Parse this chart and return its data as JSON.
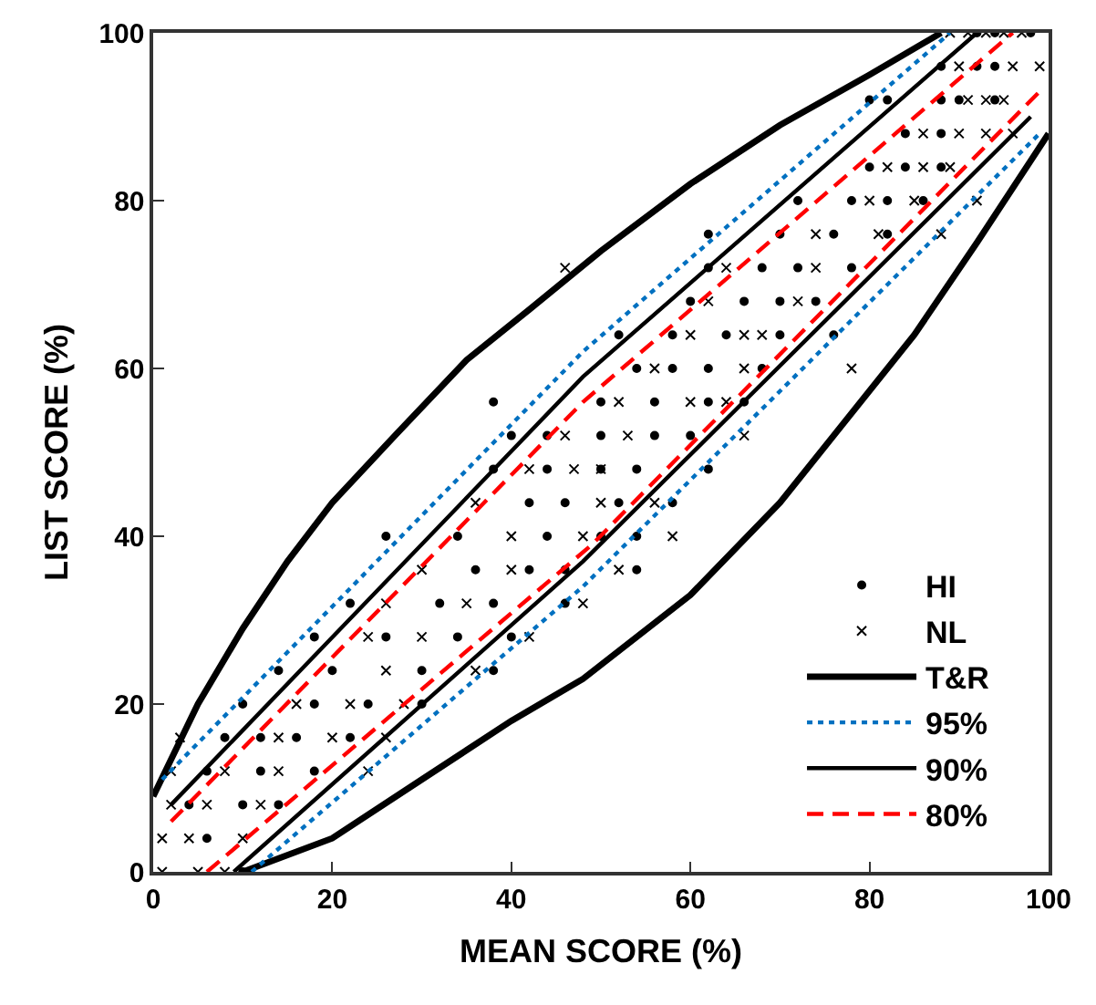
{
  "chart_data": {
    "type": "scatter",
    "xlabel": "MEAN SCORE (%)",
    "ylabel": "LIST SCORE (%)",
    "xlim": [
      0,
      100
    ],
    "ylim": [
      0,
      100
    ],
    "xticks": [
      0,
      20,
      40,
      60,
      80,
      100
    ],
    "yticks": [
      0,
      20,
      40,
      60,
      80,
      100
    ],
    "grid": false,
    "legend": "bottom right",
    "series": [
      {
        "name": "HI",
        "marker": "circle",
        "color": "#000000",
        "x": [
          92,
          94,
          98,
          88,
          92,
          94,
          80,
          82,
          88,
          90,
          94,
          84,
          88,
          80,
          84,
          88,
          72,
          78,
          82,
          86,
          62,
          70,
          76,
          82,
          62,
          68,
          72,
          78,
          60,
          66,
          70,
          74,
          52,
          58,
          64,
          70,
          76,
          54,
          58,
          62,
          68,
          38,
          50,
          56,
          62,
          66,
          40,
          44,
          50,
          56,
          60,
          38,
          44,
          50,
          54,
          62,
          42,
          46,
          52,
          58,
          26,
          34,
          44,
          50,
          54,
          36,
          42,
          46,
          54,
          22,
          32,
          38,
          46,
          18,
          26,
          34,
          40,
          14,
          20,
          30,
          38,
          10,
          18,
          24,
          30,
          8,
          12,
          16,
          22,
          6,
          12,
          18,
          4,
          10,
          14,
          6,
          10
        ],
        "values": [
          100,
          100,
          100,
          96,
          96,
          96,
          92,
          92,
          92,
          92,
          92,
          88,
          88,
          84,
          84,
          84,
          80,
          80,
          80,
          80,
          76,
          76,
          76,
          76,
          72,
          72,
          72,
          72,
          68,
          68,
          68,
          68,
          64,
          64,
          64,
          64,
          64,
          60,
          60,
          60,
          60,
          56,
          56,
          56,
          56,
          56,
          52,
          52,
          52,
          52,
          52,
          48,
          48,
          48,
          48,
          48,
          44,
          44,
          44,
          44,
          40,
          40,
          40,
          40,
          40,
          36,
          36,
          36,
          36,
          32,
          32,
          32,
          32,
          28,
          28,
          28,
          28,
          24,
          24,
          24,
          24,
          20,
          20,
          20,
          20,
          16,
          16,
          16,
          16,
          12,
          12,
          12,
          8,
          8,
          8,
          4,
          0
        ]
      },
      {
        "name": "NL",
        "marker": "cross",
        "color": "#000000",
        "x": [
          89,
          91,
          93,
          95,
          97,
          90,
          96,
          99,
          91,
          93,
          95,
          86,
          90,
          93,
          96,
          82,
          86,
          89,
          80,
          85,
          92,
          74,
          81,
          88,
          46,
          64,
          74,
          62,
          72,
          60,
          66,
          68,
          56,
          66,
          78,
          52,
          60,
          64,
          46,
          53,
          66,
          42,
          50,
          47,
          36,
          50,
          56,
          40,
          48,
          58,
          30,
          40,
          52,
          26,
          35,
          48,
          24,
          30,
          42,
          26,
          36,
          16,
          22,
          28,
          3,
          14,
          20,
          26,
          2,
          8,
          14,
          24,
          2,
          6,
          12,
          1,
          4,
          10,
          1,
          5,
          8
        ],
        "values": [
          100,
          100,
          100,
          100,
          100,
          96,
          96,
          96,
          92,
          92,
          92,
          88,
          88,
          88,
          88,
          84,
          84,
          84,
          80,
          80,
          80,
          76,
          76,
          76,
          72,
          72,
          72,
          68,
          68,
          64,
          64,
          64,
          60,
          60,
          60,
          56,
          56,
          56,
          52,
          52,
          52,
          48,
          48,
          48,
          44,
          44,
          44,
          40,
          40,
          40,
          36,
          36,
          36,
          32,
          32,
          32,
          28,
          28,
          28,
          24,
          24,
          20,
          20,
          20,
          16,
          16,
          16,
          16,
          12,
          12,
          12,
          12,
          8,
          8,
          8,
          4,
          4,
          4,
          0,
          0,
          0
        ]
      },
      {
        "name": "T&R",
        "type": "line",
        "marker": "none",
        "line_style": "solid",
        "color": "#000000",
        "x": [
          0,
          5,
          10,
          15,
          20,
          27,
          35,
          42,
          50,
          60,
          70,
          80,
          88
        ],
        "values": [
          9,
          20,
          29,
          37,
          44,
          52,
          61,
          67,
          74,
          82,
          89,
          95,
          100
        ]
      },
      {
        "type": "line",
        "marker": "none",
        "line_style": "solid",
        "color": "#000000",
        "x": [
          10,
          20,
          30,
          40,
          48,
          60,
          70,
          76,
          85,
          92,
          100
        ],
        "values": [
          0,
          4,
          11,
          18,
          23,
          33,
          44,
          52,
          64,
          75,
          88
        ]
      },
      {
        "name": "95%",
        "type": "line",
        "marker": "none",
        "line_style": "dotted",
        "color": "#0070c0",
        "x": [
          1,
          48,
          89
        ],
        "values": [
          11,
          62,
          100
        ]
      },
      {
        "type": "line",
        "marker": "none",
        "line_style": "dotted",
        "color": "#0070c0",
        "x": [
          11,
          48,
          99
        ],
        "values": [
          0,
          34,
          88
        ]
      },
      {
        "name": "90%",
        "type": "line",
        "marker": "none",
        "line_style": "solid",
        "color": "#000000",
        "x": [
          2,
          48,
          92
        ],
        "values": [
          8,
          59,
          100
        ]
      },
      {
        "type": "line",
        "marker": "none",
        "line_style": "solid",
        "color": "#000000",
        "x": [
          9,
          48,
          98
        ],
        "values": [
          0,
          37,
          90
        ]
      },
      {
        "name": "80%",
        "type": "line",
        "marker": "none",
        "line_style": "dashed",
        "color": "#ff0000",
        "x": [
          2,
          48,
          96
        ],
        "values": [
          6,
          56,
          100
        ]
      },
      {
        "type": "line",
        "marker": "none",
        "line_style": "dashed",
        "color": "#ff0000",
        "x": [
          6,
          49,
          99
        ],
        "values": [
          0,
          39,
          93
        ]
      }
    ]
  }
}
